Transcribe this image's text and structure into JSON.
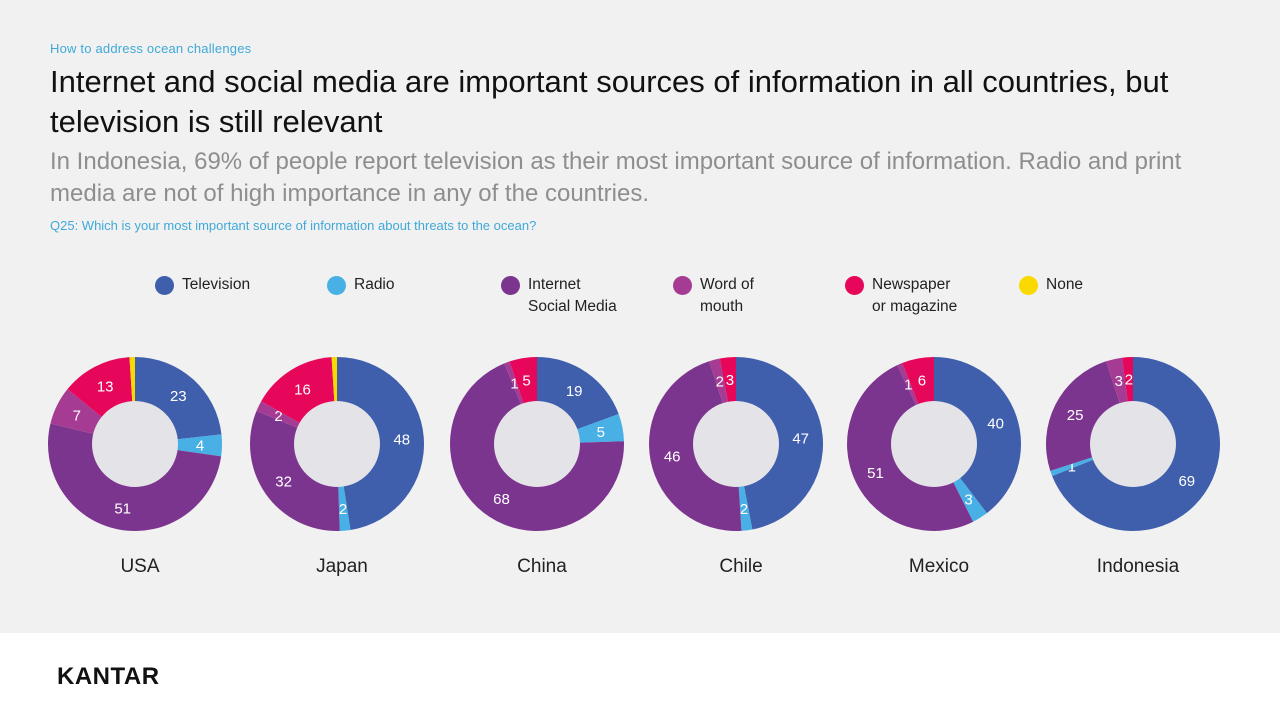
{
  "header": {
    "kicker": "How to address ocean challenges",
    "title": "Internet and social media are important sources of information in all countries, but television is still relevant",
    "subtitle": "In Indonesia, 69% of people report television as their most important source of information. Radio and print media are not of high importance in any of the countries.",
    "question": "Q25: Which is your most important source of information about threats to the ocean?"
  },
  "footer": {
    "logo_text": "KANTAR"
  },
  "chart_data": {
    "type": "donut",
    "categories": [
      "Television",
      "Radio",
      "Internet Social Media",
      "Word of mouth",
      "Newspaper or magazine",
      "None"
    ],
    "legend": [
      {
        "label": "Television",
        "color": "#3f5fac"
      },
      {
        "label": "Radio",
        "color": "#48b0e5"
      },
      {
        "label": "Internet\nSocial Media",
        "color": "#7c358e"
      },
      {
        "label": "Word of\nmouth",
        "color": "#a53b93"
      },
      {
        "label": "Newspaper\nor magazine",
        "color": "#e6075b"
      },
      {
        "label": "None",
        "color": "#f9d900"
      }
    ],
    "series": [
      {
        "name": "USA",
        "values": [
          23,
          4,
          51,
          7,
          13,
          1
        ],
        "labels": [
          "23",
          "4",
          "51",
          "7",
          "13",
          ""
        ]
      },
      {
        "name": "Japan",
        "values": [
          48,
          2,
          32,
          2,
          16,
          1
        ],
        "labels": [
          "48",
          "2",
          "32",
          "2",
          "16",
          ""
        ]
      },
      {
        "name": "China",
        "values": [
          19,
          5,
          68,
          1,
          5,
          0
        ],
        "labels": [
          "19",
          "5",
          "68",
          "1",
          "5",
          ""
        ]
      },
      {
        "name": "Chile",
        "values": [
          47,
          2,
          46,
          2,
          3,
          0
        ],
        "labels": [
          "47",
          "2",
          "46",
          "2",
          "3",
          ""
        ]
      },
      {
        "name": "Mexico",
        "values": [
          40,
          3,
          51,
          1,
          6,
          0
        ],
        "labels": [
          "40",
          "3",
          "51",
          "1",
          "6",
          ""
        ]
      },
      {
        "name": "Indonesia",
        "values": [
          69,
          1,
          25,
          3,
          2,
          0
        ],
        "labels": [
          "69",
          "1",
          "25",
          "3",
          "2",
          ""
        ]
      }
    ],
    "label_color": "#ffffff",
    "hole_color": "#e3e3e8"
  }
}
